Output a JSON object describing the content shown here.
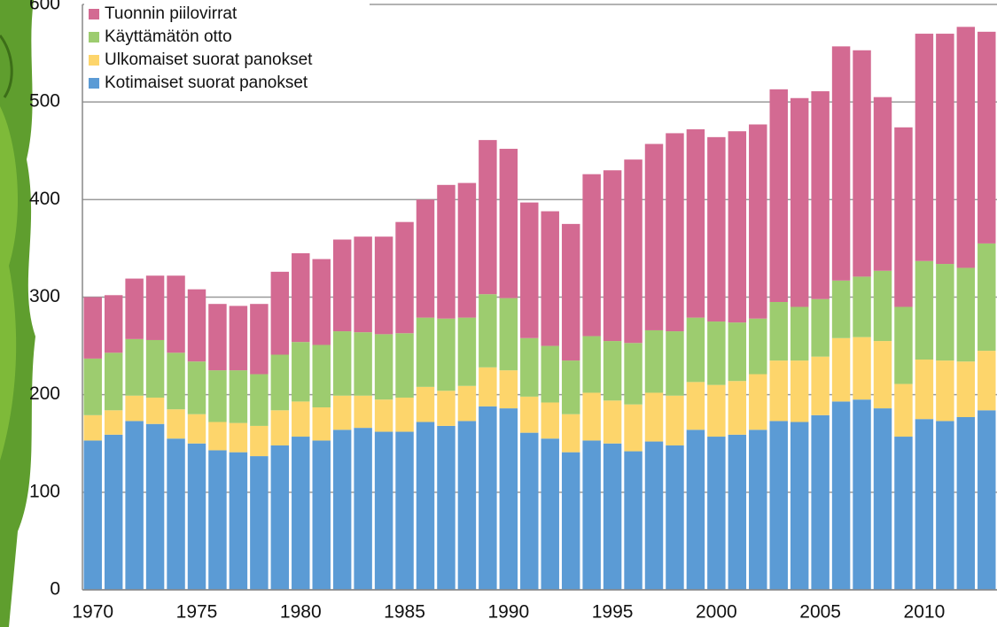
{
  "chart_data": {
    "type": "stacked_bar",
    "categories": [
      1970,
      null,
      null,
      null,
      null,
      1975,
      null,
      null,
      null,
      null,
      1980,
      null,
      null,
      null,
      null,
      1985,
      null,
      null,
      null,
      null,
      1990,
      null,
      null,
      null,
      null,
      1995,
      null,
      null,
      null,
      null,
      2000,
      null,
      null,
      null,
      null,
      2005,
      null,
      null,
      null,
      null,
      2010,
      null,
      null,
      null
    ],
    "series": [
      {
        "name": "Kotimaiset suorat panokset",
        "color": "#5b9bd5",
        "values": [
          153,
          159,
          173,
          170,
          155,
          150,
          143,
          141,
          137,
          148,
          157,
          153,
          164,
          166,
          162,
          162,
          172,
          168,
          173,
          188,
          186,
          161,
          155,
          141,
          153,
          150,
          142,
          152,
          148,
          164,
          157,
          159,
          164,
          173,
          172,
          179,
          193,
          195,
          186,
          157,
          175,
          173,
          177,
          184
        ]
      },
      {
        "name": "Ulkomaiset suorat panokset",
        "color": "#fdd56b",
        "values": [
          26,
          25,
          26,
          27,
          30,
          30,
          29,
          30,
          31,
          36,
          36,
          34,
          35,
          33,
          33,
          35,
          36,
          36,
          36,
          40,
          39,
          37,
          37,
          39,
          49,
          44,
          48,
          50,
          51,
          49,
          53,
          55,
          57,
          62,
          63,
          60,
          65,
          64,
          69,
          54,
          61,
          62,
          57,
          61
        ]
      },
      {
        "name": "Käyttämätön otto",
        "color": "#9dcc6f",
        "values": [
          58,
          59,
          58,
          59,
          58,
          54,
          53,
          54,
          53,
          57,
          61,
          64,
          66,
          65,
          67,
          66,
          71,
          74,
          70,
          75,
          74,
          60,
          58,
          55,
          58,
          61,
          63,
          64,
          66,
          66,
          65,
          60,
          57,
          60,
          55,
          59,
          59,
          62,
          72,
          79,
          101,
          99,
          96,
          110
        ]
      },
      {
        "name": "Tuonnin piilovirrat",
        "color": "#d36a92",
        "values": [
          63,
          59,
          62,
          66,
          79,
          74,
          68,
          66,
          72,
          85,
          91,
          88,
          94,
          98,
          100,
          114,
          121,
          137,
          138,
          158,
          153,
          139,
          138,
          140,
          166,
          175,
          188,
          191,
          203,
          193,
          189,
          196,
          199,
          218,
          214,
          213,
          240,
          232,
          178,
          184,
          233,
          236,
          247,
          217
        ]
      }
    ],
    "ylim": [
      0,
      600
    ],
    "yticks": [
      0,
      100,
      200,
      300,
      400,
      500,
      600
    ],
    "grid": true,
    "legend": "top-left"
  }
}
